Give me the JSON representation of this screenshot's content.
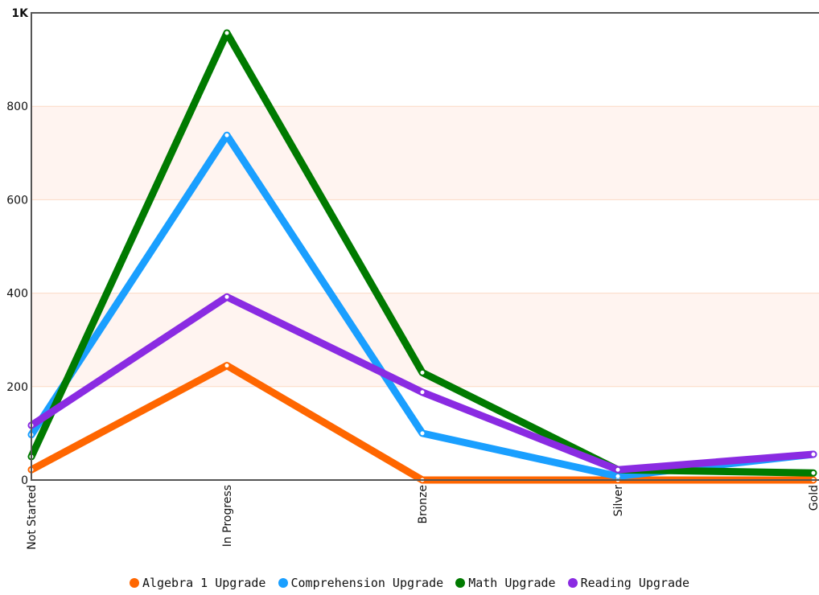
{
  "chart_data": {
    "type": "line",
    "categories": [
      "Not Started",
      "In Progress",
      "Bronze",
      "Silver",
      "Gold"
    ],
    "ylim": [
      0,
      1000
    ],
    "yticks": [
      0,
      200,
      400,
      600,
      800,
      1000
    ],
    "ytick_labels": [
      "0",
      "200",
      "400",
      "600",
      "800",
      "1K"
    ],
    "grid": true,
    "legend_position": "bottom",
    "series": [
      {
        "name": "Algebra 1 Upgrade",
        "color": "#ff6600",
        "values": [
          22,
          245,
          0,
          0,
          0
        ]
      },
      {
        "name": "Comprehension Upgrade",
        "color": "#1a9fff",
        "values": [
          97,
          738,
          100,
          8,
          55
        ]
      },
      {
        "name": "Math Upgrade",
        "color": "#007a00",
        "values": [
          50,
          957,
          230,
          22,
          15
        ]
      },
      {
        "name": "Reading Upgrade",
        "color": "#8a2be2",
        "values": [
          117,
          392,
          188,
          22,
          55
        ]
      }
    ]
  }
}
